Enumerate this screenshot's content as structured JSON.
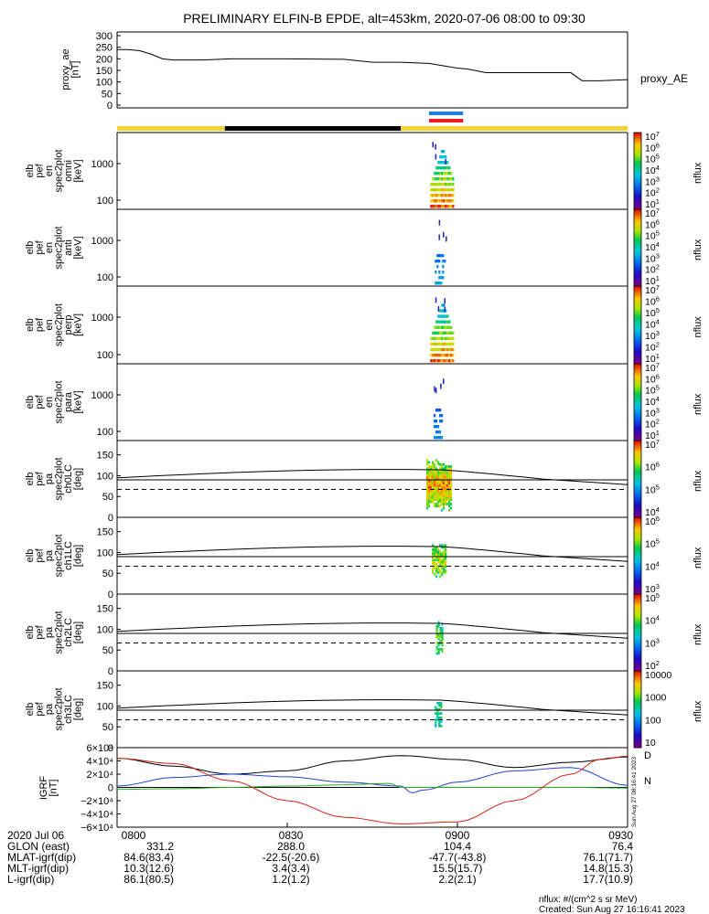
{
  "title": "PRELIMINARY ELFIN-B EPDE, alt=453km, 2020-07-06 08:00 to 09:30",
  "colors": {
    "ae_line": "#000000",
    "sci_zone_on": "#f5d335",
    "sci_zone_off": "#000000",
    "conj_blue": "#1e7fe0",
    "conj_red": "#e81e1e",
    "bx": "#000000",
    "by": "#2040d0",
    "bz": "#20b020",
    "btot": "#d02010"
  },
  "chart_data": [
    {
      "type": "line",
      "panel": "proxy_ae",
      "ylabel": [
        "proxy_ae",
        "[nT]"
      ],
      "right_label": "proxy_AE",
      "yticks": [
        "300",
        "250",
        "200",
        "150",
        "100",
        "50",
        "0"
      ],
      "ylim": [
        0,
        300
      ],
      "x_minutes": [
        0,
        2,
        4,
        6,
        8,
        10,
        15,
        20,
        25,
        30,
        40,
        45,
        50,
        55,
        60,
        62,
        65,
        70,
        75,
        80,
        82,
        85,
        90
      ],
      "values": [
        240,
        240,
        235,
        220,
        200,
        195,
        195,
        200,
        200,
        200,
        198,
        185,
        185,
        180,
        160,
        155,
        140,
        140,
        140,
        140,
        105,
        105,
        110
      ]
    },
    {
      "type": "bar",
      "panel": "science_zone_bar",
      "segments": [
        {
          "from": 0,
          "to": 19,
          "state": "on"
        },
        {
          "from": 19,
          "to": 50,
          "state": "off"
        },
        {
          "from": 50,
          "to": 90,
          "state": "on"
        }
      ],
      "conjunction_markers": [
        {
          "from": 55,
          "to": 61,
          "color": "blue"
        },
        {
          "from": 55,
          "to": 61,
          "color": "red"
        }
      ]
    },
    {
      "type": "heatmap",
      "panel": "omni",
      "ylabel": [
        "elb",
        "pef",
        "en",
        "spec2plot",
        "omni",
        "[keV]"
      ],
      "yticks": [
        "1000",
        "100"
      ],
      "scale": "log",
      "colorbar": {
        "label": "nflux",
        "ticks": [
          "10^7",
          "10^6",
          "10^5",
          "10^4",
          "10^3",
          "10^2",
          "10^1"
        ]
      },
      "burst_minutes": [
        55.2,
        59.5
      ],
      "intensity": 1.0
    },
    {
      "type": "heatmap",
      "panel": "anti",
      "ylabel": [
        "elb",
        "pef",
        "en",
        "spec2plot",
        "anti",
        "[keV]"
      ],
      "yticks": [
        "1000",
        "100"
      ],
      "scale": "log",
      "colorbar": {
        "label": "nflux",
        "ticks": [
          "10^7",
          "10^6",
          "10^5",
          "10^4",
          "10^3",
          "10^2",
          "10^1"
        ]
      },
      "burst_minutes": [
        56.0,
        58.0
      ],
      "intensity": 0.35
    },
    {
      "type": "heatmap",
      "panel": "perp",
      "ylabel": [
        "elb",
        "pef",
        "en",
        "spec2plot",
        "perp",
        "[keV]"
      ],
      "yticks": [
        "1000",
        "100"
      ],
      "scale": "log",
      "colorbar": {
        "label": "nflux",
        "ticks": [
          "10^7",
          "10^6",
          "10^5",
          "10^4",
          "10^3",
          "10^2",
          "10^1"
        ]
      },
      "burst_minutes": [
        55.2,
        59.5
      ],
      "intensity": 1.0
    },
    {
      "type": "heatmap",
      "panel": "para",
      "ylabel": [
        "elb",
        "pef",
        "en",
        "spec2plot",
        "para",
        "[keV]"
      ],
      "yticks": [
        "1000",
        "100"
      ],
      "scale": "log",
      "colorbar": {
        "label": "nflux",
        "ticks": [
          "10^7",
          "10^6",
          "10^5",
          "10^4",
          "10^3",
          "10^2",
          "10^1"
        ]
      },
      "burst_minutes": [
        55.8,
        57.5
      ],
      "intensity": 0.3
    },
    {
      "type": "heatmap",
      "panel": "pa_ch0",
      "ylabel": [
        "elb",
        "pef",
        "pa",
        "spec2plot",
        "ch0LC",
        "[deg]"
      ],
      "yticks": [
        "150",
        "100",
        "50",
        "0"
      ],
      "ylim": [
        0,
        180
      ],
      "colorbar": {
        "label": "nflux",
        "ticks": [
          "10^7",
          "10^6",
          "10^5",
          "10^4"
        ]
      },
      "burst_minutes": [
        54.5,
        59.0
      ],
      "pa_range": [
        10,
        140
      ],
      "intensity": 1.0
    },
    {
      "type": "heatmap",
      "panel": "pa_ch1",
      "ylabel": [
        "elb",
        "pef",
        "pa",
        "spec2plot",
        "ch1LC",
        "[deg]"
      ],
      "yticks": [
        "150",
        "100",
        "50",
        "0"
      ],
      "ylim": [
        0,
        180
      ],
      "colorbar": {
        "label": "nflux",
        "ticks": [
          "10^6",
          "10^5",
          "10^4",
          "10^3"
        ]
      },
      "burst_minutes": [
        55.5,
        58.0
      ],
      "pa_range": [
        35,
        120
      ],
      "intensity": 0.75
    },
    {
      "type": "heatmap",
      "panel": "pa_ch2",
      "ylabel": [
        "elb",
        "pef",
        "pa",
        "spec2plot",
        "ch2LC",
        "[deg]"
      ],
      "yticks": [
        "150",
        "100",
        "50",
        "0"
      ],
      "ylim": [
        0,
        180
      ],
      "colorbar": {
        "label": "nflux",
        "ticks": [
          "10^5",
          "10^4",
          "10^3",
          "10^2"
        ]
      },
      "burst_minutes": [
        56.2,
        57.4
      ],
      "pa_range": [
        35,
        120
      ],
      "intensity": 0.6
    },
    {
      "type": "heatmap",
      "panel": "pa_ch3",
      "ylabel": [
        "elb",
        "pef",
        "pa",
        "spec2plot",
        "ch3LC",
        "[deg]"
      ],
      "yticks": [
        "150",
        "100",
        "50",
        "0"
      ],
      "ylim": [
        0,
        180
      ],
      "colorbar": {
        "label": "nflux",
        "ticks": [
          "10000",
          "1000",
          "100",
          "10"
        ]
      },
      "burst_minutes": [
        56.0,
        57.0
      ],
      "pa_range": [
        40,
        110
      ],
      "intensity": 0.4
    },
    {
      "type": "line",
      "panel": "igrf",
      "ylabel": [
        "IGRF",
        "[nT]"
      ],
      "ylim": [
        -60000,
        60000
      ],
      "yticks": [
        "6×10⁴",
        "4×10⁴",
        "2×10⁴",
        "0",
        "−2×10⁴",
        "−4×10⁴",
        "−6×10⁴"
      ],
      "right_labels": [
        "D",
        "N"
      ],
      "series": [
        {
          "color": "black",
          "x": [
            0,
            10,
            20,
            30,
            40,
            50,
            60,
            70,
            80,
            90
          ],
          "values": [
            44000,
            32000,
            20000,
            25000,
            40000,
            48000,
            42000,
            30000,
            38000,
            46000
          ]
        },
        {
          "color": "blue",
          "x": [
            0,
            10,
            20,
            30,
            40,
            50,
            52,
            54,
            60,
            70,
            80,
            90
          ],
          "values": [
            2000,
            15000,
            20000,
            16000,
            8000,
            2000,
            -8000,
            -4000,
            8000,
            25000,
            30000,
            3000
          ]
        },
        {
          "color": "green",
          "x": [
            0,
            10,
            20,
            30,
            40,
            48,
            50,
            60,
            70,
            80,
            90
          ],
          "values": [
            -3000,
            -2000,
            0,
            2000,
            4000,
            6000,
            0,
            0,
            0,
            0,
            -1000
          ]
        },
        {
          "color": "red",
          "x": [
            0,
            10,
            20,
            30,
            40,
            50,
            60,
            70,
            80,
            85,
            90
          ],
          "values": [
            44000,
            36000,
            10000,
            -20000,
            -45000,
            -55000,
            -52000,
            -20000,
            20000,
            42000,
            47000
          ]
        }
      ]
    }
  ],
  "bottom_axis": {
    "rows": [
      {
        "label": "2020 Jul 06",
        "values": [
          "0800",
          "0830",
          "0900",
          "0930"
        ]
      },
      {
        "label": "GLON (east)",
        "values": [
          "331.2",
          "288.0",
          "104.4",
          "76.4"
        ]
      },
      {
        "label": "MLAT-igrf(dip)",
        "values": [
          "84.6(83.4)",
          "-22.5(-20.6)",
          "-47.7(-43.8)",
          "76.1(71.7)"
        ]
      },
      {
        "label": "MLT-igrf(dip)",
        "values": [
          "10.3(12.6)",
          "3.4(3.4)",
          "15.5(15.7)",
          "14.8(15.3)"
        ]
      },
      {
        "label": "L-igrf(dip)",
        "values": [
          "86.1(80.5)",
          "1.2(1.2)",
          "2.2(2.1)",
          "17.7(10.9)"
        ]
      }
    ]
  },
  "side_stamp": "Sun Aug 27 08:16:41 2023",
  "footer": {
    "units": "nflux: #/(cm^2 s sr MeV)",
    "created": "Created: Sun Aug 27 16:16:41 2023"
  }
}
